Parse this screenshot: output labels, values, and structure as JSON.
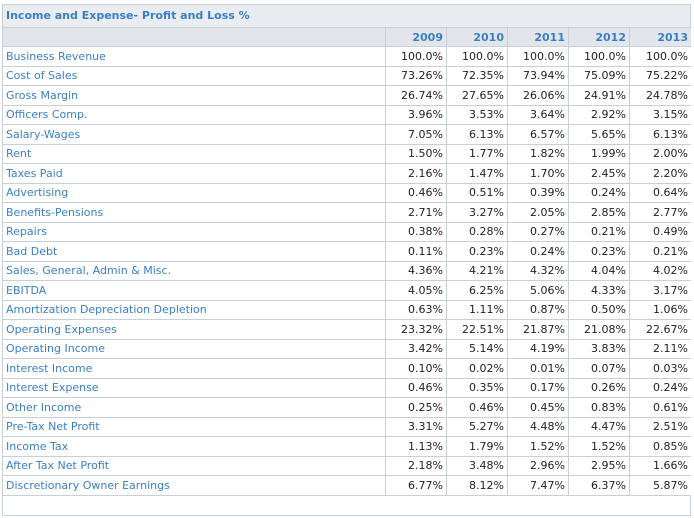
{
  "title": "Income and Expense- Profit and Loss %",
  "years": [
    "2009",
    "2010",
    "2011",
    "2012",
    "2013"
  ],
  "rows": [
    {
      "label": "Business Revenue",
      "values": [
        "100.0%",
        "100.0%",
        "100.0%",
        "100.0%",
        "100.0%"
      ]
    },
    {
      "label": "Cost of Sales",
      "values": [
        "73.26%",
        "72.35%",
        "73.94%",
        "75.09%",
        "75.22%"
      ]
    },
    {
      "label": "Gross Margin",
      "values": [
        "26.74%",
        "27.65%",
        "26.06%",
        "24.91%",
        "24.78%"
      ]
    },
    {
      "label": "Officers Comp.",
      "values": [
        "3.96%",
        "3.53%",
        "3.64%",
        "2.92%",
        "3.15%"
      ]
    },
    {
      "label": "Salary-Wages",
      "values": [
        "7.05%",
        "6.13%",
        "6.57%",
        "5.65%",
        "6.13%"
      ]
    },
    {
      "label": "Rent",
      "values": [
        "1.50%",
        "1.77%",
        "1.82%",
        "1.99%",
        "2.00%"
      ]
    },
    {
      "label": "Taxes Paid",
      "values": [
        "2.16%",
        "1.47%",
        "1.70%",
        "2.45%",
        "2.20%"
      ]
    },
    {
      "label": "Advertising",
      "values": [
        "0.46%",
        "0.51%",
        "0.39%",
        "0.24%",
        "0.64%"
      ]
    },
    {
      "label": "Benefits-Pensions",
      "values": [
        "2.71%",
        "3.27%",
        "2.05%",
        "2.85%",
        "2.77%"
      ]
    },
    {
      "label": "Repairs",
      "values": [
        "0.38%",
        "0.28%",
        "0.27%",
        "0.21%",
        "0.49%"
      ]
    },
    {
      "label": "Bad Debt",
      "values": [
        "0.11%",
        "0.23%",
        "0.24%",
        "0.23%",
        "0.21%"
      ]
    },
    {
      "label": "Sales, General, Admin & Misc.",
      "values": [
        "4.36%",
        "4.21%",
        "4.32%",
        "4.04%",
        "4.02%"
      ]
    },
    {
      "label": "EBITDA",
      "values": [
        "4.05%",
        "6.25%",
        "5.06%",
        "4.33%",
        "3.17%"
      ]
    },
    {
      "label": "Amortization Depreciation Depletion",
      "values": [
        "0.63%",
        "1.11%",
        "0.87%",
        "0.50%",
        "1.06%"
      ]
    },
    {
      "label": "Operating Expenses",
      "values": [
        "23.32%",
        "22.51%",
        "21.87%",
        "21.08%",
        "22.67%"
      ]
    },
    {
      "label": "Operating Income",
      "values": [
        "3.42%",
        "5.14%",
        "4.19%",
        "3.83%",
        "2.11%"
      ]
    },
    {
      "label": "Interest Income",
      "values": [
        "0.10%",
        "0.02%",
        "0.01%",
        "0.07%",
        "0.03%"
      ]
    },
    {
      "label": "Interest Expense",
      "values": [
        "0.46%",
        "0.35%",
        "0.17%",
        "0.26%",
        "0.24%"
      ]
    },
    {
      "label": "Other Income",
      "values": [
        "0.25%",
        "0.46%",
        "0.45%",
        "0.83%",
        "0.61%"
      ]
    },
    {
      "label": "Pre-Tax Net Profit",
      "values": [
        "3.31%",
        "5.27%",
        "4.48%",
        "4.47%",
        "2.51%"
      ]
    },
    {
      "label": "Income Tax",
      "values": [
        "1.13%",
        "1.79%",
        "1.52%",
        "1.52%",
        "0.85%"
      ]
    },
    {
      "label": "After Tax Net Profit",
      "values": [
        "2.18%",
        "3.48%",
        "2.96%",
        "2.95%",
        "1.66%"
      ]
    },
    {
      "label": "Discretionary Owner Earnings",
      "values": [
        "6.77%",
        "8.12%",
        "7.47%",
        "6.37%",
        "5.87%"
      ]
    }
  ]
}
